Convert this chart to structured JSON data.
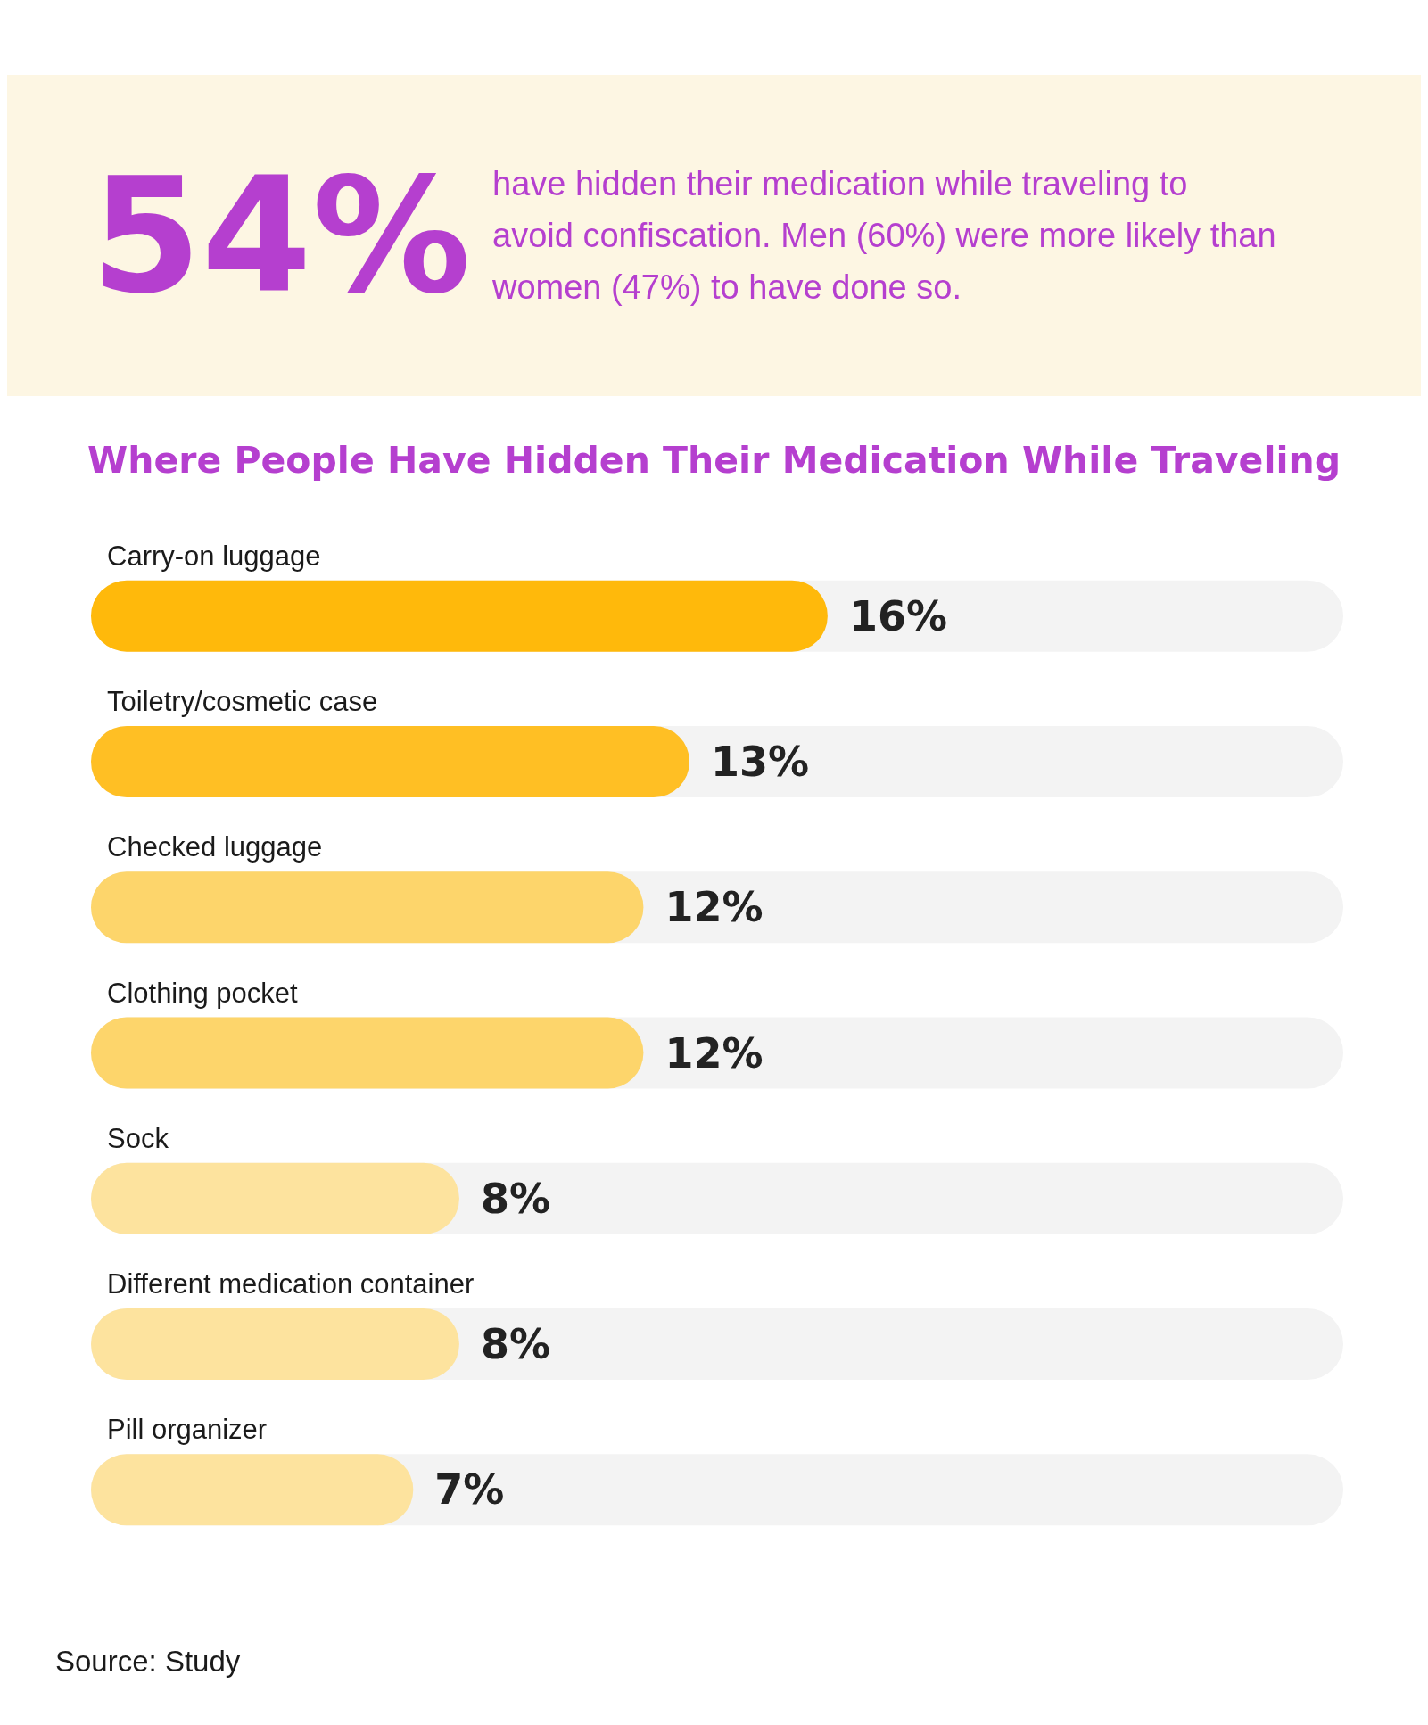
{
  "chart_data": {
    "type": "bar",
    "orientation": "horizontal",
    "title": "Where People Have Hidden Their Medication While Traveling",
    "categories": [
      "Carry-on luggage",
      "Toiletry/cosmetic case",
      "Checked luggage",
      "Clothing pocket",
      "Sock",
      "Different medication container",
      "Pill organizer"
    ],
    "values": [
      16,
      13,
      12,
      12,
      8,
      8,
      7
    ],
    "colors": [
      "#ffb90b",
      "#ffbf24",
      "#fdd56b",
      "#fdd56b",
      "#fde39e",
      "#fde39e",
      "#fde39e"
    ],
    "data_labels": true,
    "value_labels": [
      "16%",
      "13%",
      "12%",
      "12%",
      "8%",
      "8%",
      "7%"
    ],
    "annotations": [
      "54%",
      "have hidden their medication while traveling to avoid confiscation. Men (60%) were more likely than women (47%) to have done so.",
      "Source: Study"
    ]
  }
}
